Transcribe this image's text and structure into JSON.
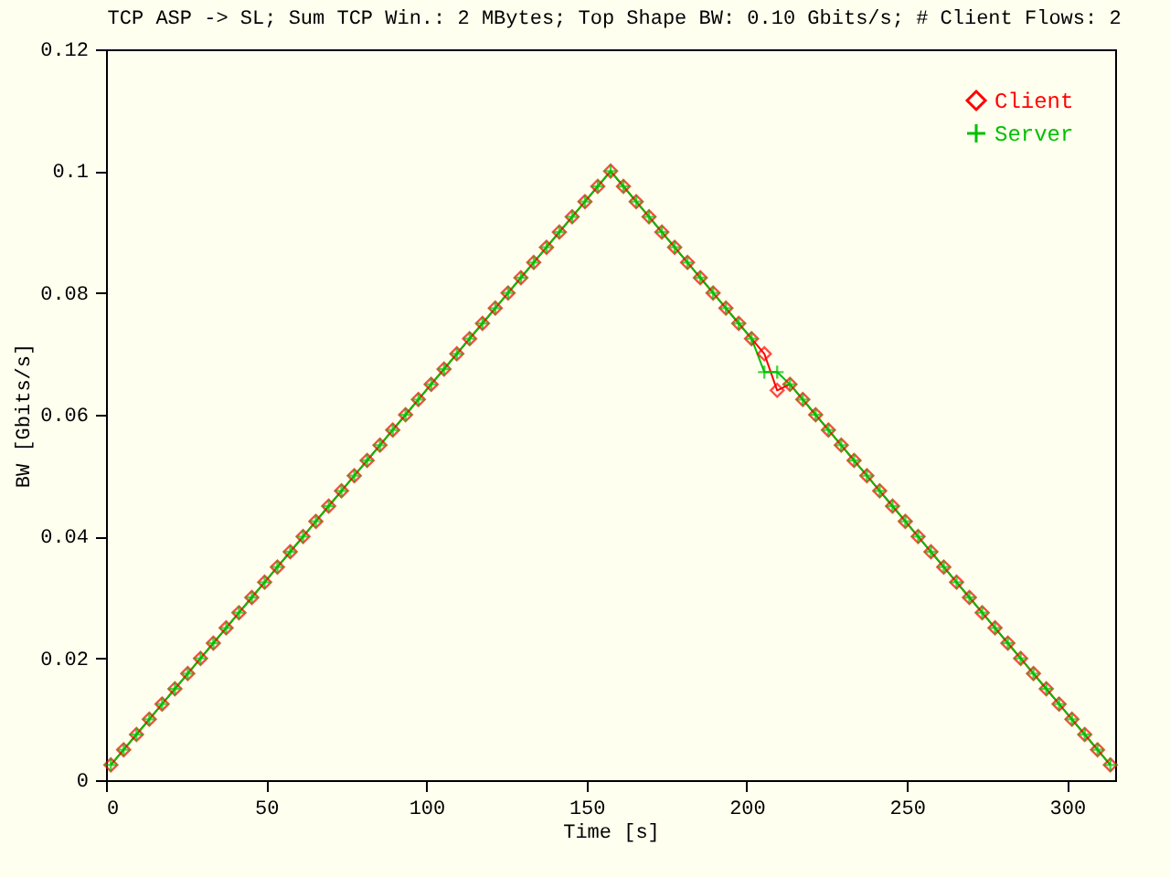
{
  "chart_data": {
    "type": "line",
    "title": "TCP ASP -> SL; Sum TCP Win.: 2 MBytes; Top Shape BW: 0.10 Gbits/s; # Client Flows: 2",
    "xlabel": "Time [s]",
    "ylabel": "BW [Gbits/s]",
    "x": [
      1.5,
      5.5,
      9.5,
      13.5,
      17.5,
      21.5,
      25.5,
      29.5,
      33.5,
      37.5,
      41.5,
      45.5,
      49.5,
      53.5,
      57.5,
      61.5,
      65.5,
      69.5,
      73.5,
      77.5,
      81.5,
      85.5,
      89.5,
      93.5,
      97.5,
      101.5,
      105.5,
      109.5,
      113.5,
      117.5,
      121.5,
      125.5,
      129.5,
      133.5,
      137.5,
      141.5,
      145.5,
      149.5,
      153.5,
      157.5,
      161.5,
      165.5,
      169.5,
      173.5,
      177.5,
      181.5,
      185.5,
      189.5,
      193.5,
      197.5,
      201.5,
      205.5,
      209.5,
      213.5,
      217.5,
      221.5,
      225.5,
      229.5,
      233.5,
      237.5,
      241.5,
      245.5,
      249.5,
      253.5,
      257.5,
      261.5,
      265.5,
      269.5,
      273.5,
      277.5,
      281.5,
      285.5,
      289.5,
      293.5,
      297.5,
      301.5,
      305.5,
      309.5,
      313.5
    ],
    "series": [
      {
        "name": "Client",
        "color": "#ff0000",
        "marker": "diamond",
        "values": [
          0.0025,
          0.005,
          0.0075,
          0.01,
          0.0125,
          0.015,
          0.0175,
          0.02,
          0.0225,
          0.025,
          0.0275,
          0.03,
          0.0325,
          0.035,
          0.0375,
          0.04,
          0.0425,
          0.045,
          0.0475,
          0.05,
          0.0525,
          0.055,
          0.0575,
          0.06,
          0.0625,
          0.065,
          0.0675,
          0.07,
          0.0725,
          0.075,
          0.0775,
          0.08,
          0.0825,
          0.085,
          0.0875,
          0.09,
          0.0925,
          0.095,
          0.0975,
          0.1,
          0.0975,
          0.095,
          0.0925,
          0.09,
          0.0875,
          0.085,
          0.0825,
          0.08,
          0.0775,
          0.075,
          0.0725,
          0.07,
          0.064,
          0.065,
          0.0625,
          0.06,
          0.0575,
          0.055,
          0.0525,
          0.05,
          0.0475,
          0.045,
          0.0425,
          0.04,
          0.0375,
          0.035,
          0.0325,
          0.03,
          0.0275,
          0.025,
          0.0225,
          0.02,
          0.0175,
          0.015,
          0.0125,
          0.01,
          0.0075,
          0.005,
          0.0025
        ]
      },
      {
        "name": "Server",
        "color": "#00c000",
        "marker": "cross",
        "values": [
          0.0025,
          0.005,
          0.0075,
          0.01,
          0.0125,
          0.015,
          0.0175,
          0.02,
          0.0225,
          0.025,
          0.0275,
          0.03,
          0.0325,
          0.035,
          0.0375,
          0.04,
          0.0425,
          0.045,
          0.0475,
          0.05,
          0.0525,
          0.055,
          0.0575,
          0.06,
          0.0625,
          0.065,
          0.0675,
          0.07,
          0.0725,
          0.075,
          0.0775,
          0.08,
          0.0825,
          0.085,
          0.0875,
          0.09,
          0.0925,
          0.095,
          0.0975,
          0.1,
          0.0975,
          0.095,
          0.0925,
          0.09,
          0.0875,
          0.085,
          0.0825,
          0.08,
          0.0775,
          0.075,
          0.0725,
          0.067,
          0.067,
          0.065,
          0.0625,
          0.06,
          0.0575,
          0.055,
          0.0525,
          0.05,
          0.0475,
          0.045,
          0.0425,
          0.04,
          0.0375,
          0.035,
          0.0325,
          0.03,
          0.0275,
          0.025,
          0.0225,
          0.02,
          0.0175,
          0.015,
          0.0125,
          0.01,
          0.0075,
          0.005,
          0.0025
        ]
      }
    ],
    "xlim": [
      0,
      315
    ],
    "xticks": [
      0,
      50,
      100,
      150,
      200,
      250,
      300
    ],
    "ylim": [
      0,
      0.12
    ],
    "yticks": [
      0,
      0.02,
      0.04,
      0.06,
      0.08,
      0.1,
      0.12
    ],
    "legend": "top right",
    "grid": false
  }
}
